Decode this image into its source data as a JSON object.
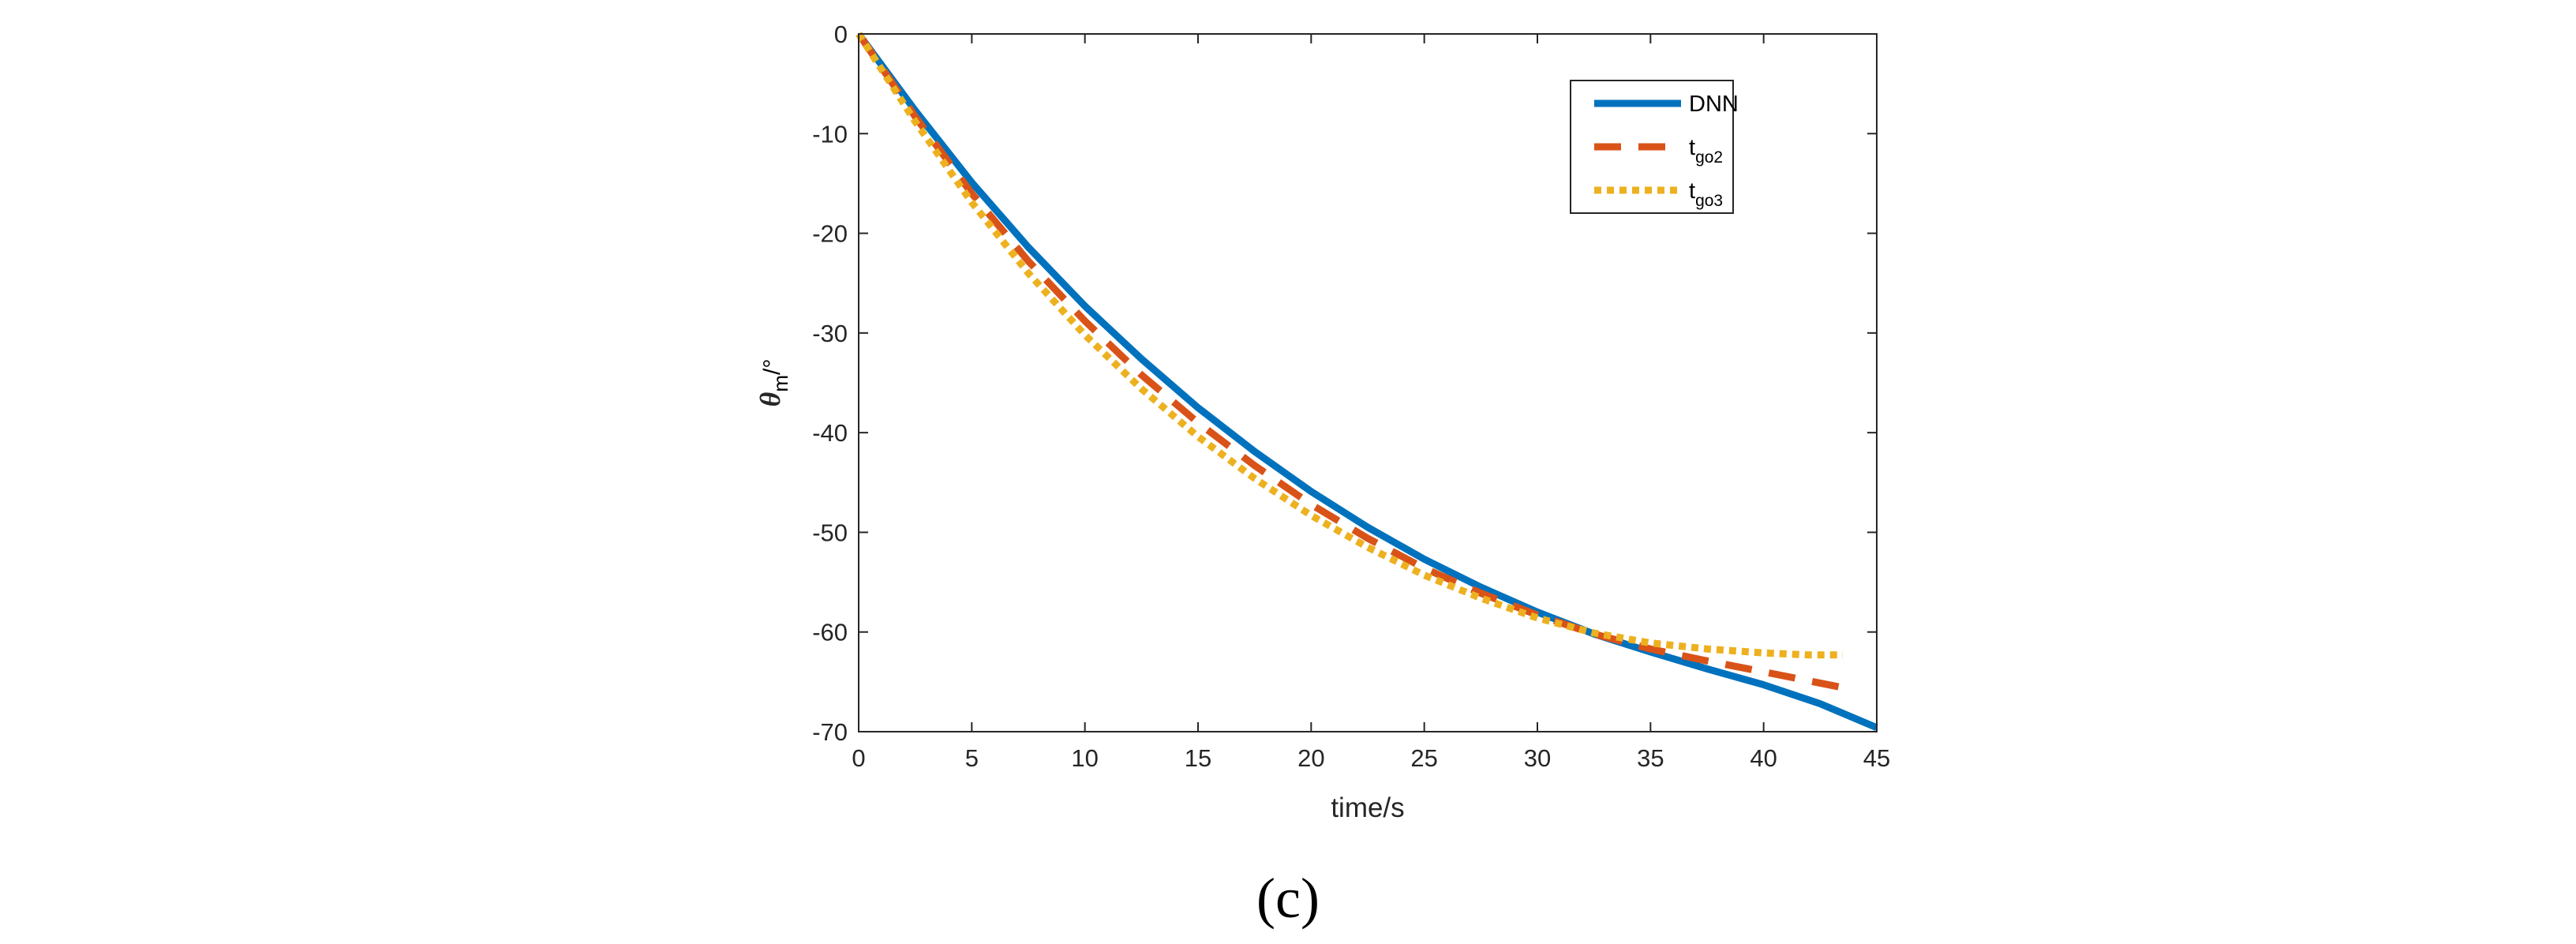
{
  "chart_data": {
    "type": "line",
    "panel_label": "(c)",
    "xlabel": "time/s",
    "ylabel": {
      "symbol": "θ",
      "subscript": "m",
      "unit": "/°"
    },
    "xlim": [
      0,
      45
    ],
    "ylim": [
      -70,
      0
    ],
    "xticks": [
      0,
      5,
      10,
      15,
      20,
      25,
      30,
      35,
      40,
      45
    ],
    "yticks": [
      0,
      -10,
      -20,
      -30,
      -40,
      -50,
      -60,
      -70
    ],
    "grid": false,
    "legend_position": "top-right",
    "series": [
      {
        "name": "DNN",
        "label_main": "DNN",
        "label_sub": "",
        "style": "solid",
        "color": "#0072BD",
        "points": [
          [
            0,
            0
          ],
          [
            2.5,
            -7.7
          ],
          [
            5,
            -14.9
          ],
          [
            7.5,
            -21.4
          ],
          [
            10,
            -27.3
          ],
          [
            12.5,
            -32.6
          ],
          [
            15,
            -37.5
          ],
          [
            17.5,
            -41.9
          ],
          [
            20,
            -45.9
          ],
          [
            22.5,
            -49.5
          ],
          [
            25,
            -52.7
          ],
          [
            27.5,
            -55.5
          ],
          [
            30,
            -58.0
          ],
          [
            32.5,
            -60.2
          ],
          [
            35,
            -62.0
          ],
          [
            37.5,
            -63.7
          ],
          [
            40,
            -65.3
          ],
          [
            42.5,
            -67.2
          ],
          [
            45,
            -69.6
          ]
        ]
      },
      {
        "name": "tgo2",
        "label_main": "t",
        "label_sub": "go2",
        "style": "dashed",
        "color": "#D95319",
        "points": [
          [
            0,
            0
          ],
          [
            2.5,
            -8.3
          ],
          [
            5,
            -16.0
          ],
          [
            7.5,
            -22.8
          ],
          [
            10,
            -28.8
          ],
          [
            12.5,
            -34.2
          ],
          [
            15,
            -39.0
          ],
          [
            17.5,
            -43.3
          ],
          [
            20,
            -47.2
          ],
          [
            22.5,
            -50.6
          ],
          [
            25,
            -53.6
          ],
          [
            27.5,
            -56.1
          ],
          [
            30,
            -58.3
          ],
          [
            32.5,
            -60.2
          ],
          [
            35,
            -61.7
          ],
          [
            37.5,
            -62.9
          ],
          [
            40,
            -64.0
          ],
          [
            42,
            -64.9
          ],
          [
            44,
            -65.8
          ]
        ]
      },
      {
        "name": "tgo3",
        "label_main": "t",
        "label_sub": "go3",
        "style": "dotted",
        "color": "#EDB120",
        "points": [
          [
            0,
            0
          ],
          [
            2.5,
            -8.8
          ],
          [
            5,
            -16.9
          ],
          [
            7.5,
            -24.0
          ],
          [
            10,
            -30.2
          ],
          [
            12.5,
            -35.6
          ],
          [
            15,
            -40.4
          ],
          [
            17.5,
            -44.6
          ],
          [
            20,
            -48.3
          ],
          [
            22.5,
            -51.5
          ],
          [
            25,
            -54.3
          ],
          [
            27.5,
            -56.6
          ],
          [
            30,
            -58.6
          ],
          [
            32.5,
            -60.1
          ],
          [
            35,
            -61.1
          ],
          [
            37.5,
            -61.7
          ],
          [
            40,
            -62.1
          ],
          [
            42,
            -62.3
          ],
          [
            43.5,
            -62.3
          ]
        ]
      }
    ]
  }
}
